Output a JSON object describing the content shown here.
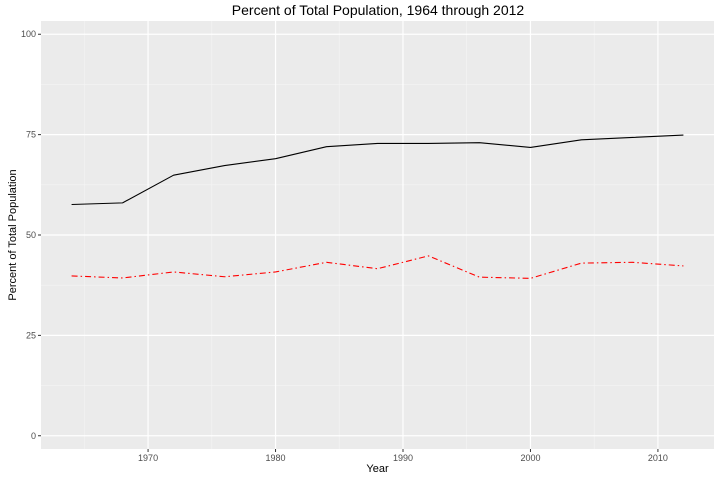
{
  "chart_data": {
    "type": "line",
    "title": "Percent of Total Population, 1964 through 2012",
    "xlabel": "Year",
    "ylabel": "Percent of Total Population",
    "xlim": [
      1961.6,
      2014.4
    ],
    "ylim": [
      -3.3,
      103.3
    ],
    "xticks": [
      1970,
      1980,
      1990,
      2000,
      2010
    ],
    "xtick_labels": [
      "1970",
      "1980",
      "1990",
      "2000",
      "2010"
    ],
    "yticks": [
      0,
      25,
      50,
      75,
      100
    ],
    "ytick_labels": [
      "0",
      "25",
      "50",
      "75",
      "100"
    ],
    "grid": true,
    "legend": "none",
    "x": [
      1964,
      1968,
      1972,
      1976,
      1980,
      1984,
      1988,
      1992,
      1996,
      2000,
      2004,
      2008,
      2012
    ],
    "series": [
      {
        "name": "series-1",
        "color": "#000000",
        "linestyle": "solid",
        "values": [
          57.6,
          58.0,
          64.9,
          67.3,
          69.0,
          72.0,
          72.8,
          72.8,
          73.0,
          71.8,
          73.7,
          74.3,
          74.9
        ]
      },
      {
        "name": "series-2",
        "color": "#ff0000",
        "linestyle": "dashdot",
        "values": [
          39.8,
          39.3,
          40.8,
          39.6,
          40.8,
          43.2,
          41.6,
          44.8,
          39.5,
          39.2,
          43.0,
          43.2,
          42.3
        ]
      }
    ]
  }
}
